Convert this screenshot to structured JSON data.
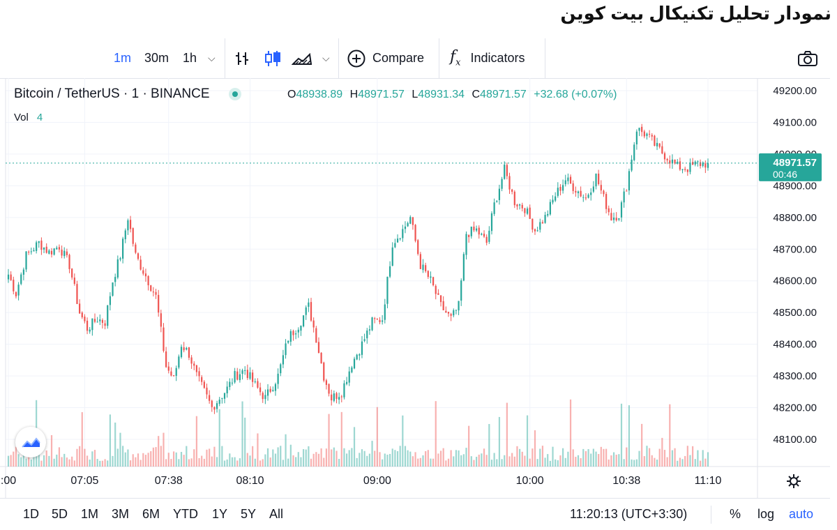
{
  "page_title": "نمودار تحلیل تکنیکال بیت کوین",
  "toolbar": {
    "intervals": [
      "1m",
      "30m",
      "1h"
    ],
    "compare_label": "Compare",
    "indicators_label": "Indicators",
    "fx_glyph": "f",
    "fx_sub": "x"
  },
  "legend": {
    "symbol": "Bitcoin / TetherUS · 1 · BINANCE",
    "o_label": "O",
    "o_value": "48938.89",
    "h_label": "H",
    "h_value": "48971.57",
    "l_label": "L",
    "l_value": "48931.34",
    "c_label": "C",
    "c_value": "48971.57",
    "change": "+32.68 (+0.07%)",
    "vol_label": "Vol",
    "vol_value": "4"
  },
  "price_badge": {
    "price": "48971.57",
    "countdown": "00:46"
  },
  "bottom": {
    "ranges": [
      "1D",
      "5D",
      "1M",
      "3M",
      "6M",
      "YTD",
      "1Y",
      "5Y",
      "All"
    ],
    "clock": "11:20:13 (UTC+3:30)",
    "percent_label": "%",
    "log_label": "log",
    "auto_label": "auto"
  },
  "colors": {
    "up": "#26a69a",
    "down": "#ef5350",
    "accent": "#2962ff"
  },
  "chart_data": {
    "type": "candlestick",
    "symbol": "Bitcoin / TetherUS",
    "exchange": "BINANCE",
    "interval": "1",
    "y_ticks": [
      49200,
      49100,
      49000,
      48900,
      48800,
      48700,
      48600,
      48500,
      48400,
      48300,
      48200,
      48100
    ],
    "ylim": [
      48050,
      49220
    ],
    "x_ticks": [
      {
        "label": ":00",
        "t": 0
      },
      {
        "label": "07:05",
        "t": 30
      },
      {
        "label": "07:38",
        "t": 63
      },
      {
        "label": "08:10",
        "t": 95
      },
      {
        "label": "09:00",
        "t": 145
      },
      {
        "label": "10:00",
        "t": 205
      },
      {
        "label": "10:38",
        "t": 243
      },
      {
        "label": "11:10",
        "t": 275
      }
    ],
    "last_price": 48971.57,
    "keyframes": [
      [
        0,
        48620
      ],
      [
        3,
        48560
      ],
      [
        7,
        48680
      ],
      [
        12,
        48720
      ],
      [
        16,
        48690
      ],
      [
        20,
        48710
      ],
      [
        24,
        48650
      ],
      [
        28,
        48500
      ],
      [
        31,
        48450
      ],
      [
        35,
        48480
      ],
      [
        38,
        48470
      ],
      [
        41,
        48600
      ],
      [
        44,
        48680
      ],
      [
        47,
        48800
      ],
      [
        50,
        48680
      ],
      [
        55,
        48600
      ],
      [
        58,
        48550
      ],
      [
        62,
        48330
      ],
      [
        65,
        48290
      ],
      [
        68,
        48400
      ],
      [
        71,
        48370
      ],
      [
        74,
        48300
      ],
      [
        77,
        48250
      ],
      [
        80,
        48200
      ],
      [
        83,
        48230
      ],
      [
        86,
        48260
      ],
      [
        89,
        48300
      ],
      [
        93,
        48320
      ],
      [
        97,
        48270
      ],
      [
        101,
        48230
      ],
      [
        106,
        48300
      ],
      [
        110,
        48420
      ],
      [
        114,
        48460
      ],
      [
        118,
        48520
      ],
      [
        121,
        48420
      ],
      [
        124,
        48300
      ],
      [
        127,
        48230
      ],
      [
        131,
        48250
      ],
      [
        135,
        48340
      ],
      [
        139,
        48400
      ],
      [
        143,
        48470
      ],
      [
        147,
        48480
      ],
      [
        151,
        48720
      ],
      [
        155,
        48760
      ],
      [
        158,
        48800
      ],
      [
        162,
        48650
      ],
      [
        166,
        48600
      ],
      [
        170,
        48520
      ],
      [
        174,
        48480
      ],
      [
        177,
        48520
      ],
      [
        180,
        48750
      ],
      [
        184,
        48760
      ],
      [
        188,
        48720
      ],
      [
        191,
        48840
      ],
      [
        195,
        48950
      ],
      [
        199,
        48850
      ],
      [
        203,
        48830
      ],
      [
        207,
        48760
      ],
      [
        211,
        48800
      ],
      [
        215,
        48870
      ],
      [
        219,
        48920
      ],
      [
        223,
        48890
      ],
      [
        227,
        48860
      ],
      [
        231,
        48930
      ],
      [
        234,
        48860
      ],
      [
        237,
        48800
      ],
      [
        240,
        48810
      ],
      [
        243,
        48900
      ],
      [
        247,
        49080
      ],
      [
        251,
        49060
      ],
      [
        255,
        49020
      ],
      [
        259,
        48990
      ],
      [
        263,
        48960
      ],
      [
        267,
        48955
      ],
      [
        271,
        48970
      ]
    ]
  }
}
